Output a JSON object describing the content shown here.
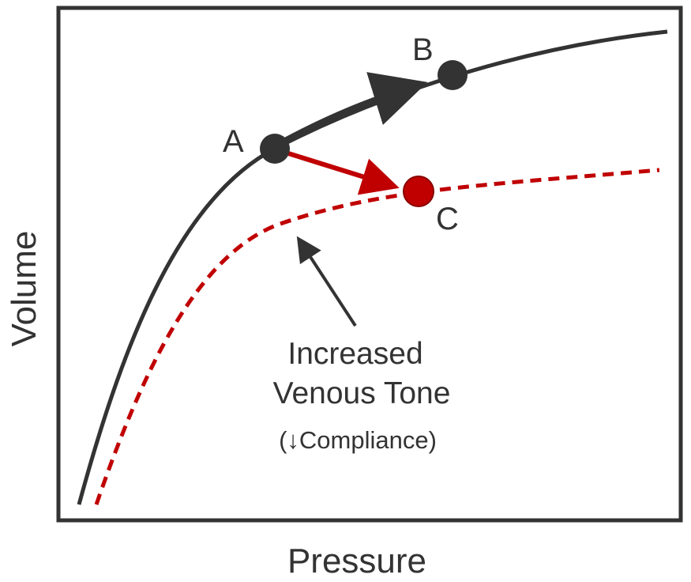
{
  "axes": {
    "x_label": "Pressure",
    "y_label": "Volume"
  },
  "points": {
    "a": "A",
    "b": "B",
    "c": "C"
  },
  "annotation": {
    "line1": "Increased",
    "line2": "Venous Tone",
    "line3": "(↓Compliance)"
  },
  "colors": {
    "normal_curve": "#333333",
    "shifted_curve": "#c00000",
    "frame": "#333333"
  },
  "curves": {
    "normal": "solid",
    "increased_venous_tone": "dashed"
  }
}
